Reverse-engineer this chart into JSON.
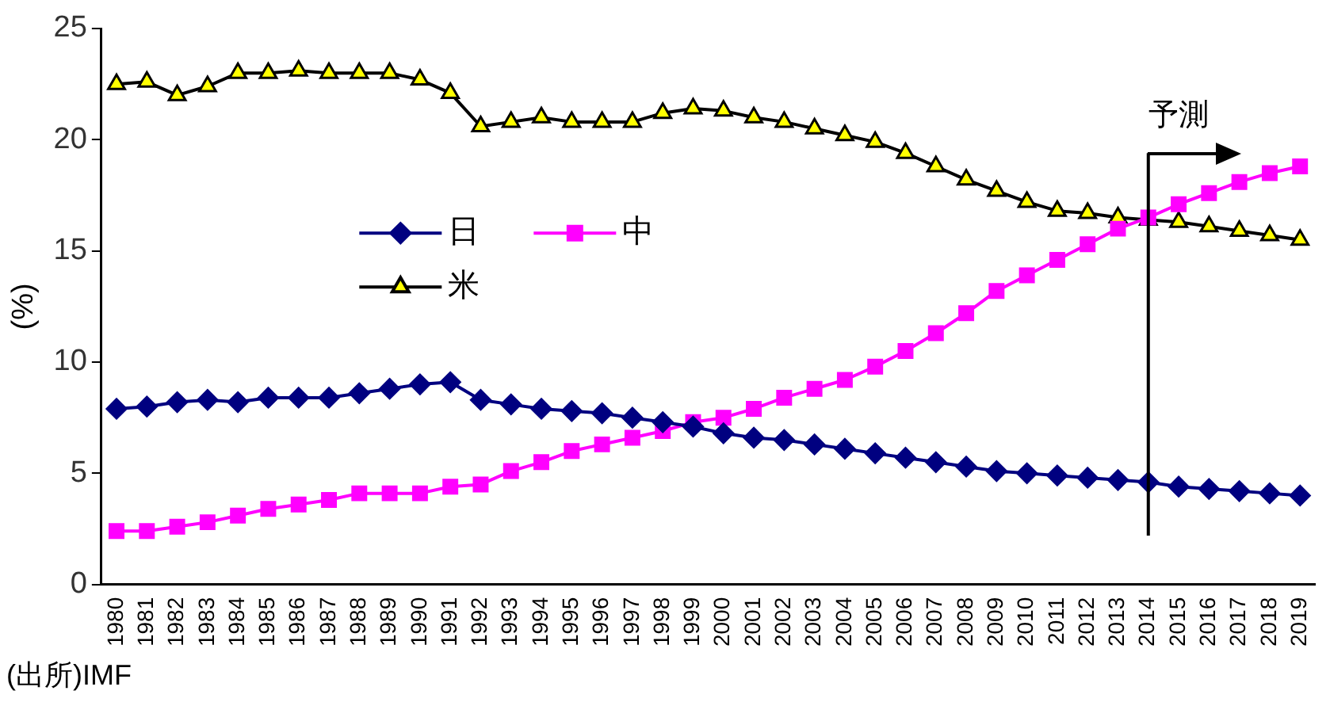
{
  "chart_data": {
    "type": "line",
    "ylabel": "(%)",
    "categories": [
      "1980",
      "1981",
      "1982",
      "1983",
      "1984",
      "1985",
      "1986",
      "1987",
      "1988",
      "1989",
      "1990",
      "1991",
      "1992",
      "1993",
      "1994",
      "1995",
      "1996",
      "1997",
      "1998",
      "1999",
      "2000",
      "2001",
      "2002",
      "2003",
      "2004",
      "2005",
      "2006",
      "2007",
      "2008",
      "2009",
      "2010",
      "2011",
      "2012",
      "2013",
      "2014",
      "2015",
      "2016",
      "2017",
      "2018",
      "2019"
    ],
    "ylim": [
      0,
      25
    ],
    "yticks": [
      0,
      5,
      10,
      15,
      20,
      25
    ],
    "grid": false,
    "legend": "center",
    "series": [
      {
        "name": "日",
        "color": "#000080",
        "marker": "diamond",
        "values": [
          7.9,
          8.0,
          8.2,
          8.3,
          8.2,
          8.4,
          8.4,
          8.4,
          8.6,
          8.8,
          9.0,
          9.1,
          8.3,
          8.1,
          7.9,
          7.8,
          7.7,
          7.5,
          7.3,
          7.1,
          6.8,
          6.6,
          6.5,
          6.3,
          6.1,
          5.9,
          5.7,
          5.5,
          5.3,
          5.1,
          5.0,
          4.9,
          4.8,
          4.7,
          4.6,
          4.4,
          4.3,
          4.2,
          4.1,
          4.0
        ]
      },
      {
        "name": "中",
        "color": "#ff00ff",
        "marker": "square",
        "values": [
          2.4,
          2.4,
          2.6,
          2.8,
          3.1,
          3.4,
          3.6,
          3.8,
          4.1,
          4.1,
          4.1,
          4.4,
          4.5,
          5.1,
          5.5,
          6.0,
          6.3,
          6.6,
          6.9,
          7.3,
          7.5,
          7.9,
          8.4,
          8.8,
          9.2,
          9.8,
          10.5,
          11.3,
          12.2,
          13.2,
          13.9,
          14.6,
          15.3,
          16.0,
          16.5,
          17.1,
          17.6,
          18.1,
          18.5,
          18.8
        ]
      },
      {
        "name": "米",
        "color": "#000000",
        "marker": "triangle",
        "values": [
          22.5,
          22.6,
          22.0,
          22.4,
          23.0,
          23.0,
          23.1,
          23.0,
          23.0,
          23.0,
          22.7,
          22.1,
          20.6,
          20.8,
          21.0,
          20.8,
          20.8,
          20.8,
          21.2,
          21.4,
          21.3,
          21.0,
          20.8,
          20.5,
          20.2,
          19.9,
          19.4,
          18.8,
          18.2,
          17.7,
          17.2,
          16.8,
          16.7,
          16.5,
          16.4,
          16.3,
          16.1,
          15.9,
          15.7,
          15.5
        ]
      }
    ],
    "ref_lines": [
      {
        "axis": "x",
        "value": "2014",
        "label": "予測",
        "color": "#000000"
      }
    ],
    "annotations": [
      "(出所)IMF"
    ]
  }
}
